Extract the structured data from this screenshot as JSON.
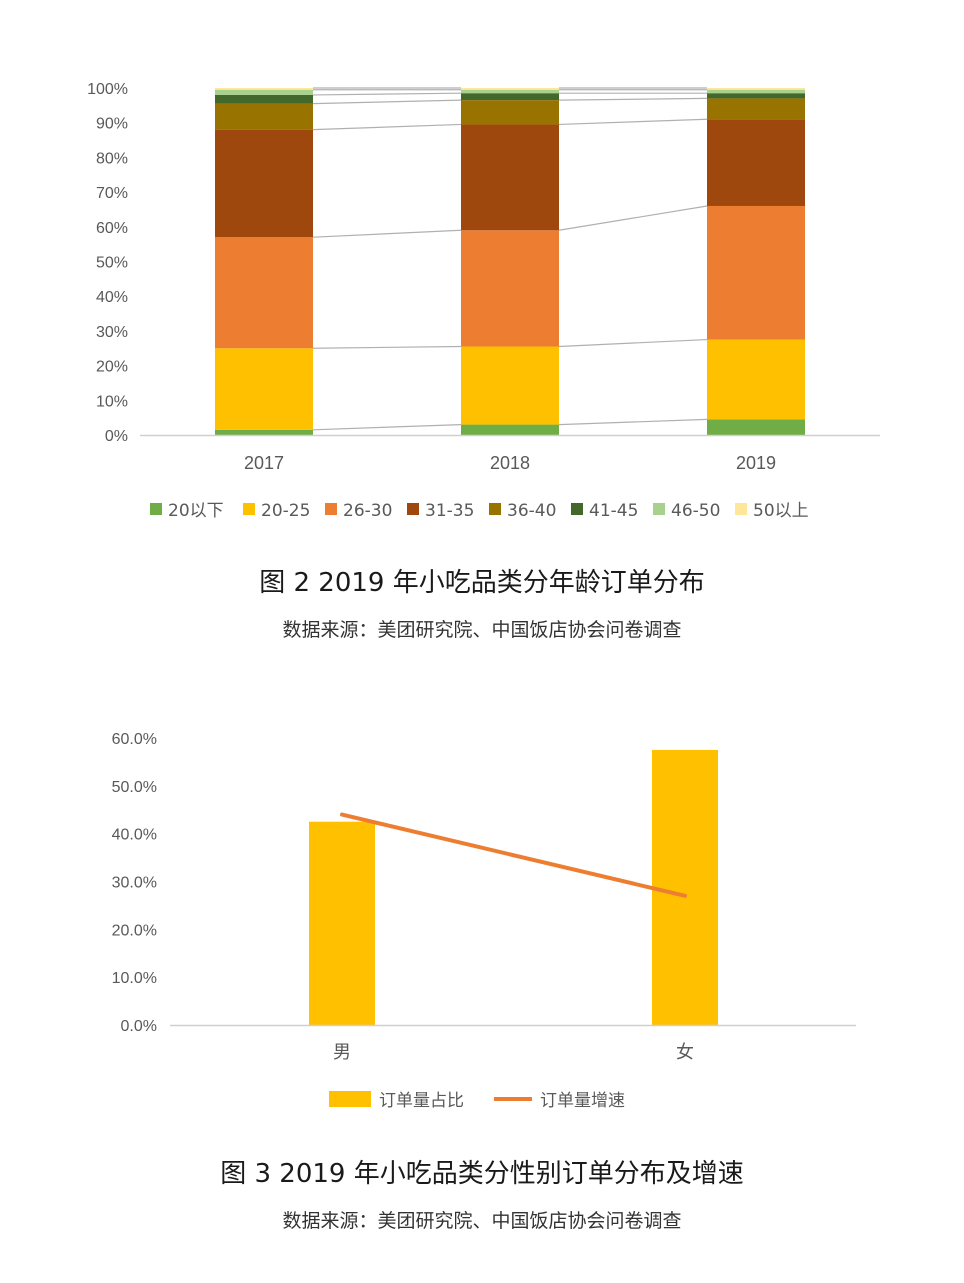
{
  "chart_data": [
    {
      "type": "bar",
      "stacked": true,
      "categories": [
        "2017",
        "2018",
        "2019"
      ],
      "yticks": [
        "0%",
        "10%",
        "20%",
        "30%",
        "40%",
        "50%",
        "60%",
        "70%",
        "80%",
        "90%",
        "100%"
      ],
      "ylim": [
        0,
        100
      ],
      "series": [
        {
          "name": "20以下",
          "color": "#70ad47",
          "values": [
            1.5,
            3,
            4.5
          ]
        },
        {
          "name": "20-25",
          "color": "#ffc000",
          "values": [
            23.5,
            22.5,
            23
          ]
        },
        {
          "name": "26-30",
          "color": "#ed7d31",
          "values": [
            32,
            33.5,
            38.5
          ]
        },
        {
          "name": "31-35",
          "color": "#9e480e",
          "values": [
            31,
            30.5,
            25
          ]
        },
        {
          "name": "36-40",
          "color": "#997300",
          "values": [
            7.5,
            7,
            6
          ]
        },
        {
          "name": "41-45",
          "color": "#43682b",
          "values": [
            2.5,
            2,
            1.5
          ]
        },
        {
          "name": "46-50",
          "color": "#a9d18e",
          "values": [
            1.5,
            1,
            1
          ]
        },
        {
          "name": "50以上",
          "color": "#ffe699",
          "values": [
            0.5,
            0.5,
            0.5
          ]
        }
      ],
      "legend_position": "bottom",
      "grid": false
    },
    {
      "type": "bar+line",
      "categories": [
        "男",
        "女"
      ],
      "yticks": [
        "0.0%",
        "10.0%",
        "20.0%",
        "30.0%",
        "40.0%",
        "50.0%",
        "60.0%"
      ],
      "ylim": [
        0,
        60
      ],
      "series": [
        {
          "name": "订单量占比",
          "type": "bar",
          "color": "#ffc000",
          "values": [
            42.5,
            57.5
          ]
        },
        {
          "name": "订单量增速",
          "type": "line",
          "color": "#ed7d31",
          "values": [
            44,
            27
          ]
        }
      ],
      "legend_position": "bottom",
      "grid": false
    }
  ],
  "figure2": {
    "caption": "图 2   2019 年小吃品类分年龄订单分布",
    "source": "数据来源：美团研究院、中国饭店协会问卷调查"
  },
  "figure3": {
    "caption": "图 3   2019 年小吃品类分性别订单分布及增速",
    "source": "数据来源：美团研究院、中国饭店协会问卷调查"
  }
}
